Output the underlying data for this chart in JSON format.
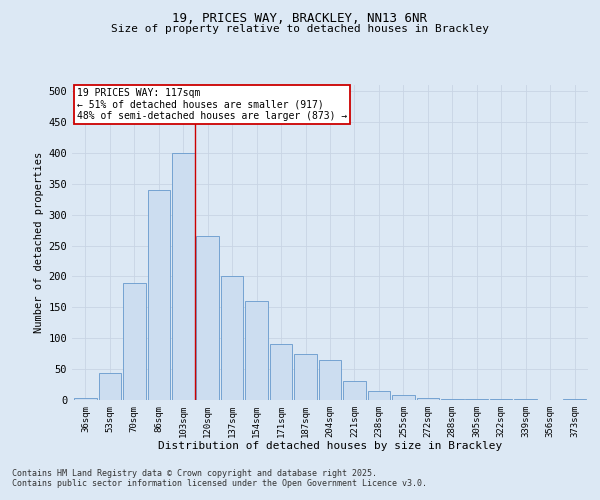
{
  "title1": "19, PRICES WAY, BRACKLEY, NN13 6NR",
  "title2": "Size of property relative to detached houses in Brackley",
  "xlabel": "Distribution of detached houses by size in Brackley",
  "ylabel": "Number of detached properties",
  "categories": [
    "36sqm",
    "53sqm",
    "70sqm",
    "86sqm",
    "103sqm",
    "120sqm",
    "137sqm",
    "154sqm",
    "171sqm",
    "187sqm",
    "204sqm",
    "221sqm",
    "238sqm",
    "255sqm",
    "272sqm",
    "288sqm",
    "305sqm",
    "322sqm",
    "339sqm",
    "356sqm",
    "373sqm"
  ],
  "values": [
    3,
    43,
    190,
    340,
    400,
    265,
    200,
    160,
    90,
    75,
    65,
    30,
    15,
    8,
    4,
    2,
    2,
    1,
    1,
    0,
    2
  ],
  "bar_color": "#ccddf0",
  "bar_edge_color": "#6699cc",
  "vline_color": "#cc0000",
  "vline_x_index": 4.5,
  "annotation_text": "19 PRICES WAY: 117sqm\n← 51% of detached houses are smaller (917)\n48% of semi-detached houses are larger (873) →",
  "annotation_box_color": "#ffffff",
  "annotation_box_edge": "#cc0000",
  "grid_color": "#c8d4e4",
  "bg_color": "#dce8f4",
  "footer1": "Contains HM Land Registry data © Crown copyright and database right 2025.",
  "footer2": "Contains public sector information licensed under the Open Government Licence v3.0.",
  "ylim": [
    0,
    510
  ],
  "yticks": [
    0,
    50,
    100,
    150,
    200,
    250,
    300,
    350,
    400,
    450,
    500
  ]
}
